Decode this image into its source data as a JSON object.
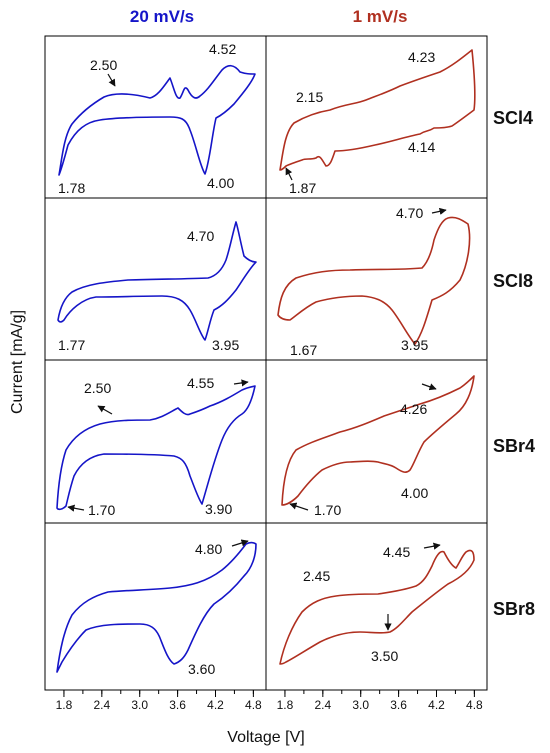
{
  "columns": [
    {
      "title": "20 mV/s",
      "color": "#1515c8"
    },
    {
      "title": "1 mV/s",
      "color": "#b03020"
    }
  ],
  "rows": [
    "SCl4",
    "SCl8",
    "SBr4",
    "SBr8"
  ],
  "chart_data": {
    "type": "line",
    "layout": "4x2 grid of cyclic voltammograms",
    "xlabel": "Voltage [V]",
    "ylabel": "Current [mA/g]",
    "x_ticks": [
      "1.8",
      "2.4",
      "3.0",
      "3.6",
      "4.2",
      "4.8"
    ],
    "xlim": [
      1.5,
      5.0
    ],
    "y_ticks_labeled": false,
    "panels": [
      {
        "row": "SCl4",
        "column": "20 mV/s",
        "annotations": [
          "2.50",
          "4.52",
          "1.78",
          "4.00"
        ]
      },
      {
        "row": "SCl4",
        "column": "1 mV/s",
        "annotations": [
          "4.23",
          "2.15",
          "4.14",
          "1.87"
        ]
      },
      {
        "row": "SCl8",
        "column": "20 mV/s",
        "annotations": [
          "4.70",
          "1.77",
          "3.95"
        ]
      },
      {
        "row": "SCl8",
        "column": "1 mV/s",
        "annotations": [
          "4.70",
          "1.67",
          "3.95"
        ]
      },
      {
        "row": "SBr4",
        "column": "20 mV/s",
        "annotations": [
          "2.50",
          "4.55",
          "1.70",
          "3.90"
        ]
      },
      {
        "row": "SBr4",
        "column": "1 mV/s",
        "annotations": [
          "4.26",
          "1.70",
          "4.00"
        ]
      },
      {
        "row": "SBr8",
        "column": "20 mV/s",
        "annotations": [
          "4.80",
          "3.60"
        ]
      },
      {
        "row": "SBr8",
        "column": "1 mV/s",
        "annotations": [
          "2.45",
          "4.45",
          "3.50"
        ]
      }
    ]
  }
}
